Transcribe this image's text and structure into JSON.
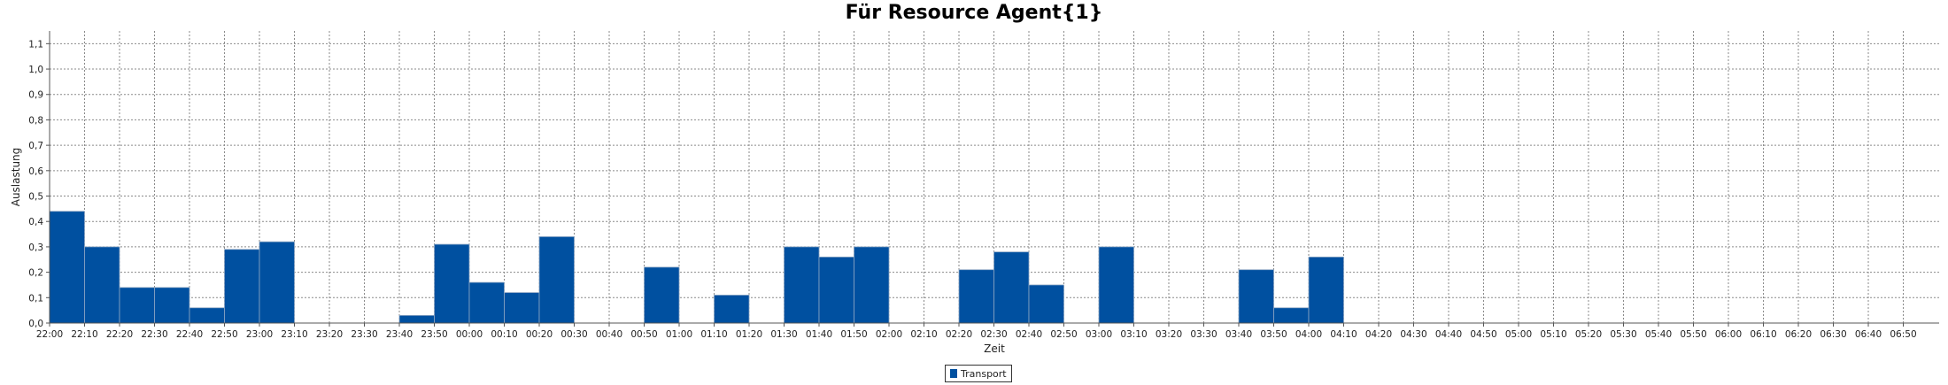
{
  "chart_data": {
    "type": "bar",
    "title": "Für Resource Agent{1}",
    "xlabel": "Zeit",
    "ylabel": "Auslastung",
    "ylim": [
      0,
      1.15
    ],
    "yticks": [
      "0,0",
      "0,1",
      "0,2",
      "0,3",
      "0,4",
      "0,5",
      "0,6",
      "0,7",
      "0,8",
      "0,9",
      "1,0",
      "1,1"
    ],
    "categories": [
      "22:00",
      "22:10",
      "22:20",
      "22:30",
      "22:40",
      "22:50",
      "23:00",
      "23:10",
      "23:20",
      "23:30",
      "23:40",
      "23:50",
      "00:00",
      "00:10",
      "00:20",
      "00:30",
      "00:40",
      "00:50",
      "01:00",
      "01:10",
      "01:20",
      "01:30",
      "01:40",
      "01:50",
      "02:00",
      "02:10",
      "02:20",
      "02:30",
      "02:40",
      "02:50",
      "03:00",
      "03:10",
      "03:20",
      "03:30",
      "03:40",
      "03:50",
      "04:00",
      "04:10",
      "04:20",
      "04:30",
      "04:40",
      "04:50",
      "05:00",
      "05:10",
      "05:20",
      "05:30",
      "05:40",
      "05:50",
      "06:00",
      "06:10",
      "06:20",
      "06:30",
      "06:40",
      "06:50"
    ],
    "grid": true,
    "legend_position": "bottom",
    "series": [
      {
        "name": "Transport",
        "color": "#0050a0",
        "values": [
          0.44,
          0.3,
          0.14,
          0.14,
          0.06,
          0.29,
          0.32,
          0,
          0,
          0,
          0.03,
          0.31,
          0.16,
          0.12,
          0.34,
          0,
          0,
          0.22,
          0,
          0.11,
          0,
          0.3,
          0.26,
          0.3,
          0,
          0,
          0.21,
          0.28,
          0.15,
          0,
          0.3,
          0,
          0,
          0,
          0.21,
          0.06,
          0.26,
          0,
          0,
          0,
          0,
          0,
          0,
          0,
          0,
          0,
          0,
          0,
          0,
          0,
          0,
          0,
          0,
          0
        ]
      }
    ]
  }
}
